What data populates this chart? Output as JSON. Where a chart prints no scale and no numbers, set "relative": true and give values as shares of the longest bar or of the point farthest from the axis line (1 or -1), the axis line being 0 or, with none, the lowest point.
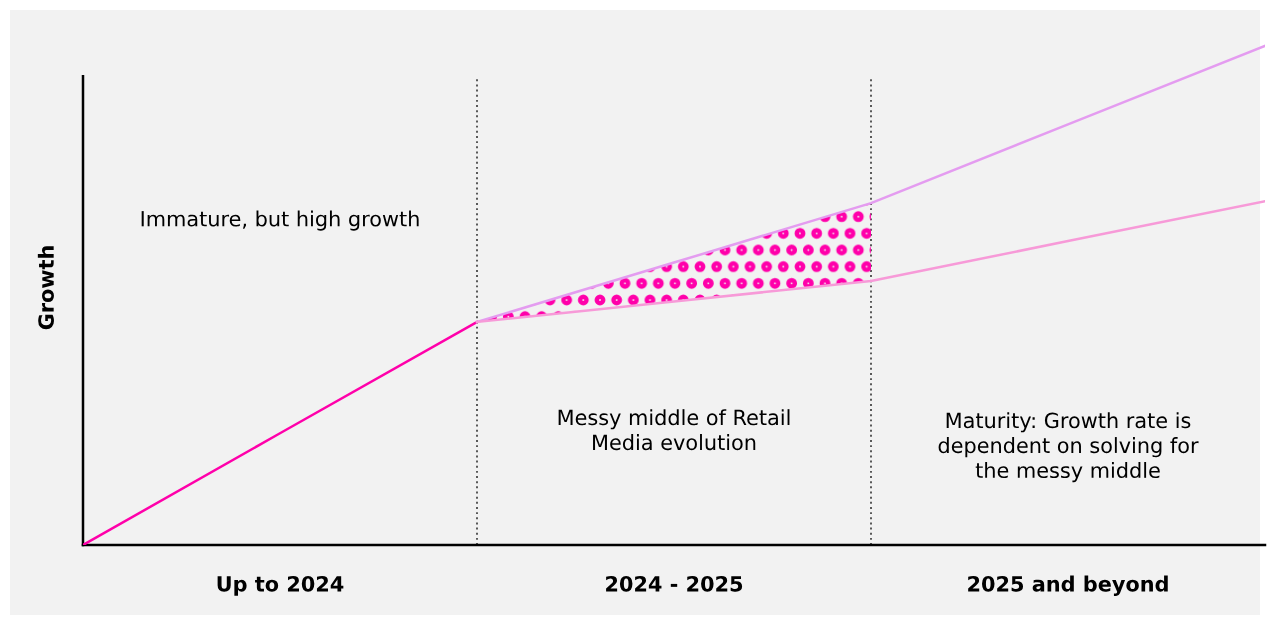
{
  "chart_data": {
    "type": "line",
    "relative": true,
    "ylabel": "Growth",
    "categories": [
      null,
      "Up to 2024",
      null,
      "2024 - 2025",
      null,
      "2025 and beyond",
      null
    ],
    "series": [
      {
        "color": "#ff00aa",
        "values": [
          0,
          0.224,
          0.447,
          null,
          null,
          null,
          null
        ]
      },
      {
        "color": "#e49cf0",
        "values": [
          null,
          null,
          0.447,
          0.566,
          0.685,
          0.843,
          1
        ],
        "lower": [
          null,
          null,
          0.447,
          0.488,
          0.529,
          null,
          null
        ],
        "upper": [
          null,
          null,
          0.447,
          0.566,
          0.685,
          null,
          null
        ]
      },
      {
        "color": "#f79ad8",
        "values": [
          null,
          null,
          0.447,
          0.488,
          0.529,
          0.609,
          0.689
        ]
      }
    ],
    "annotations": [
      "Immature, but high growth",
      "Messy middle of Retail\nMedia evolution",
      "Maturity: Growth rate is\ndependent on solving for\nthe messy middle"
    ],
    "marker": "none",
    "line_style": "solid",
    "grid": "x",
    "legend": false
  }
}
